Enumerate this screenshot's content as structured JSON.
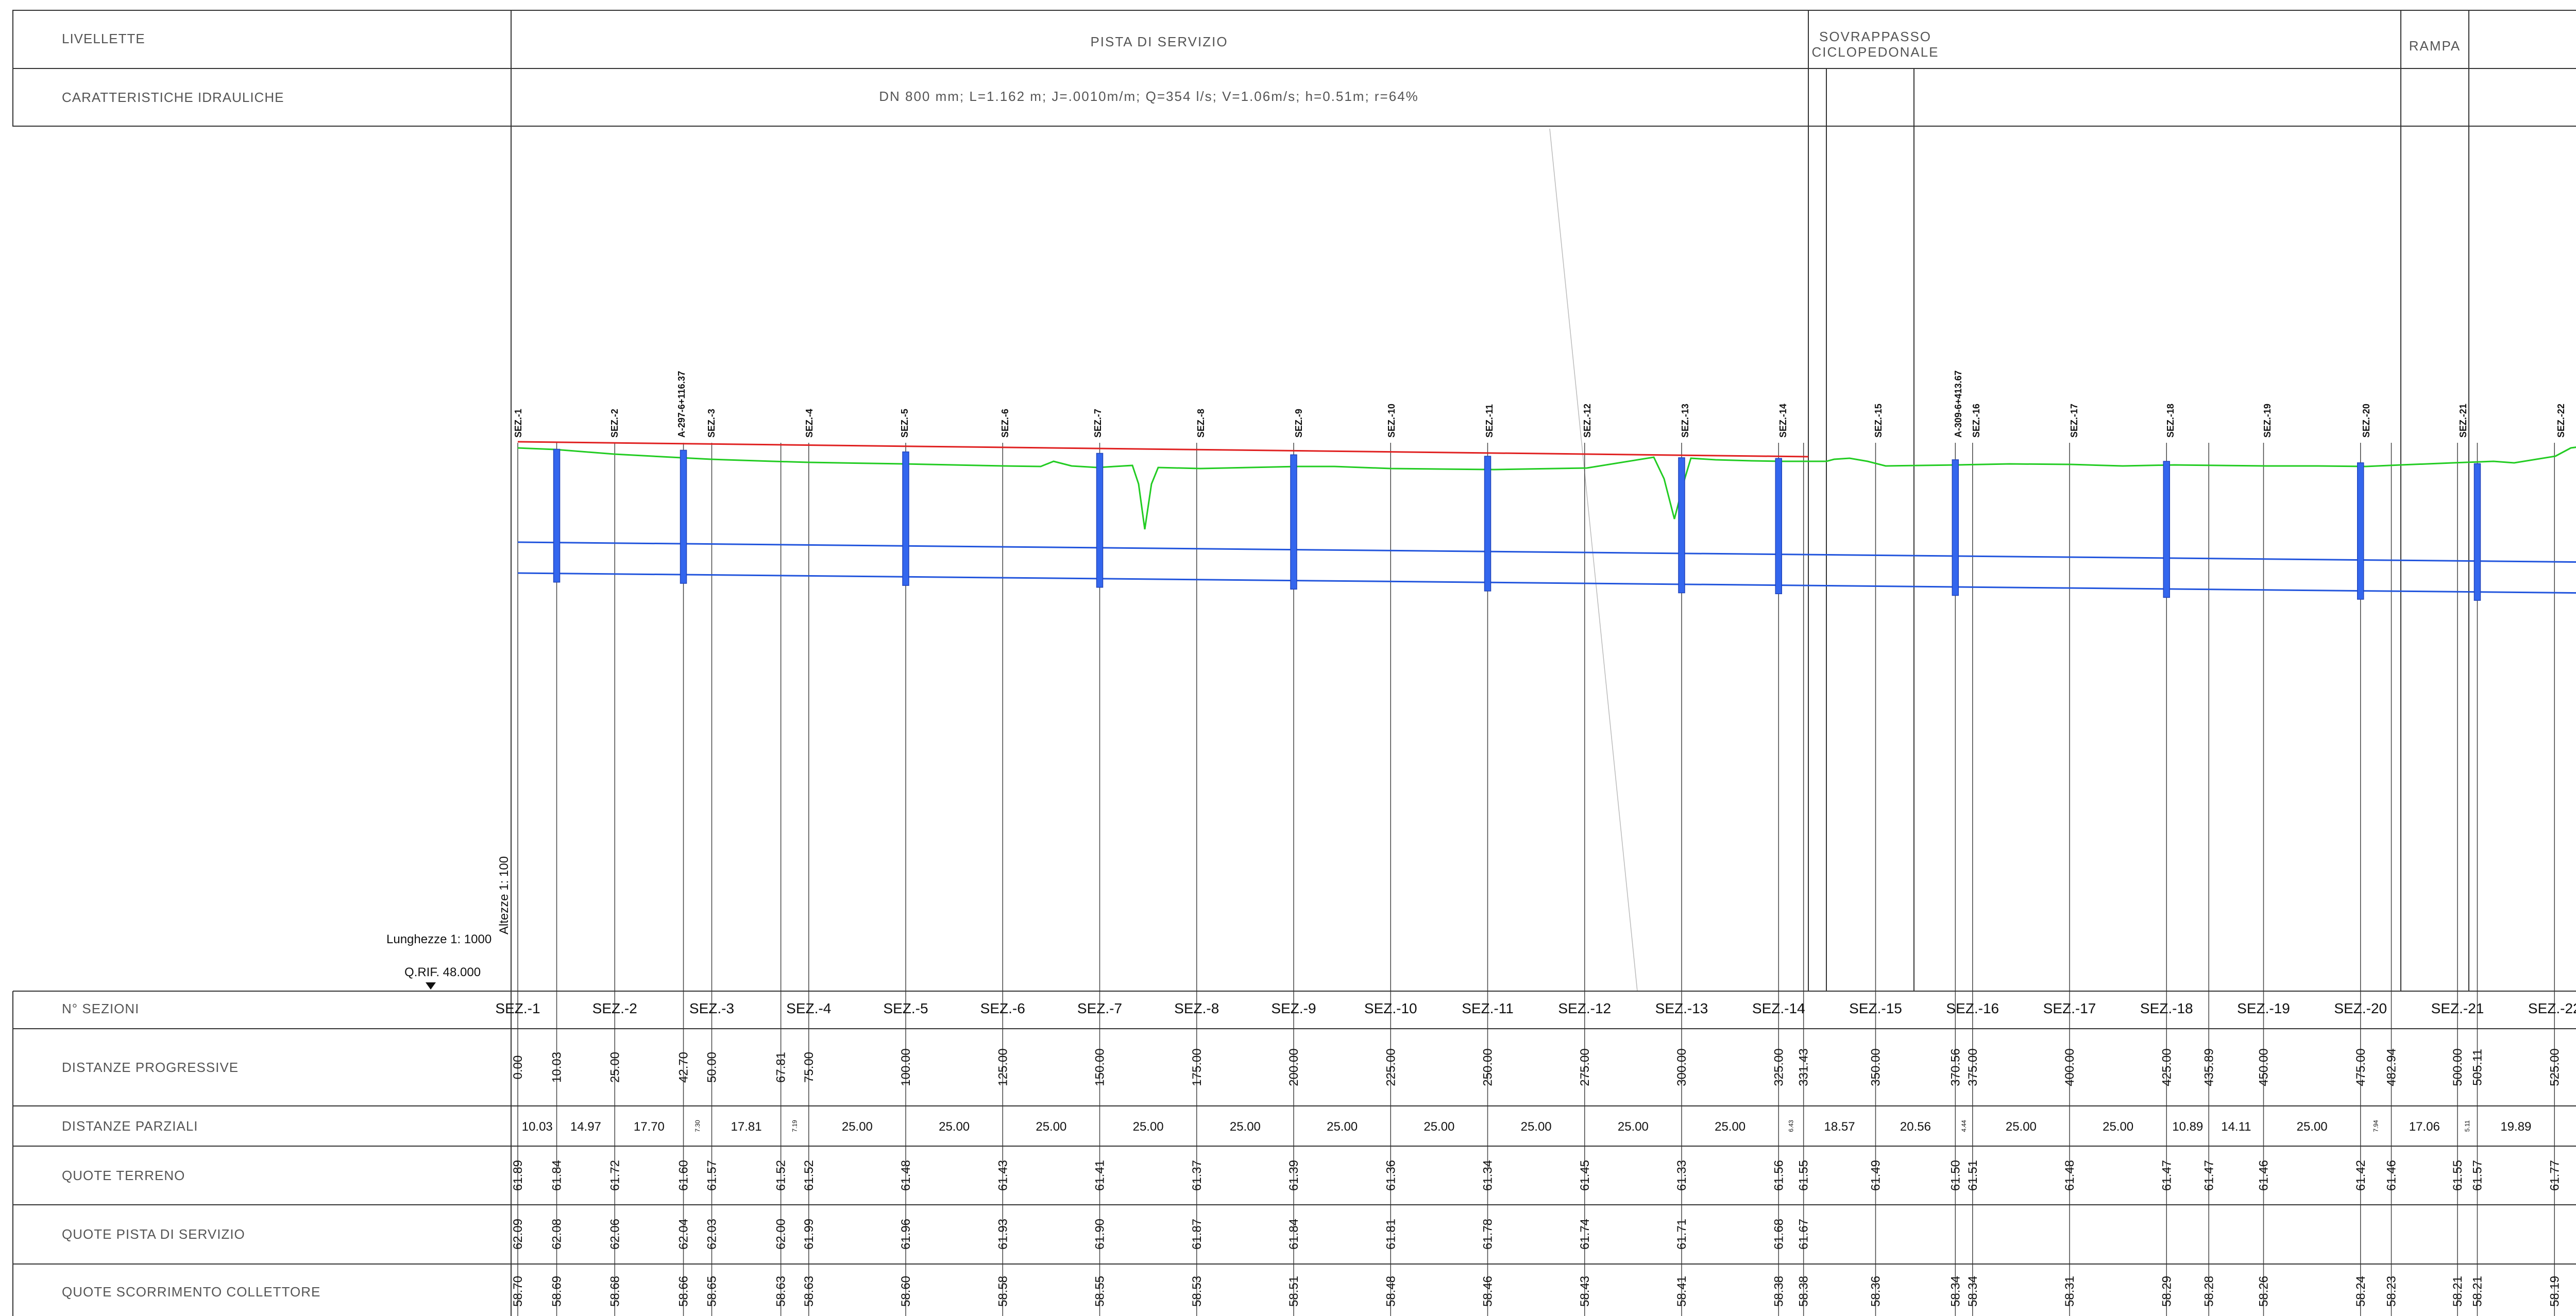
{
  "header": {
    "livellette_label": "LIVELLETTE",
    "caratteristiche_label": "CARATTERISTICHE IDRAULICHE",
    "segments": [
      "PISTA DI SERVIZIO",
      "SOVRAPPASSO",
      "CICLOPEDONALE",
      "RAMPA"
    ],
    "hydraulics": "DN 800  mm;  L=1.162  m;  J=.0010m/m;  Q=354  l/s;  V=1.06m/s;  h=0.51m;  r=64%"
  },
  "scales": {
    "altezze": "Altezze 1: 100",
    "lunghezze": "Lunghezze 1: 1000",
    "qrif": "Q.RIF. 48.000"
  },
  "row_labels": {
    "sezioni": "N° SEZIONI",
    "progressive": "DISTANZE  PROGRESSIVE",
    "parziali": "DISTANZE  PARZIALI",
    "terreno": "QUOTE  TERRENO",
    "pista": "QUOTE  PISTA  DI  SERVIZIO",
    "collettore": "QUOTE  SCORRIMENTO  COLLETTORE"
  },
  "sections": [
    "SEZ.-1",
    "SEZ.-2",
    "SEZ.-3",
    "SEZ.-4",
    "SEZ.-5",
    "SEZ.-6",
    "SEZ.-7",
    "SEZ.-8",
    "SEZ.-9",
    "SEZ.-10",
    "SEZ.-11",
    "SEZ.-12",
    "SEZ.-13",
    "SEZ.-14",
    "SEZ.-15",
    "SEZ.-16",
    "SEZ.-17",
    "SEZ.-18",
    "SEZ.-19",
    "SEZ.-20",
    "SEZ.-21",
    "SEZ.-22"
  ],
  "top_labels": [
    "SEZ.-1",
    "SEZ.-2",
    "A-297-6+116.37",
    "SEZ.-3",
    "SEZ.-4",
    "SEZ.-5",
    "SEZ.-6",
    "SEZ.-7",
    "SEZ.-8",
    "SEZ.-9",
    "SEZ.-10",
    "SEZ.-11",
    "SEZ.-12",
    "SEZ.-13",
    "SEZ.-14",
    "SEZ.-15",
    "A-309-6+413.67",
    "SEZ.-16",
    "SEZ.-17",
    "SEZ.-18",
    "SEZ.-19",
    "SEZ.-20",
    "SEZ.-21",
    "SEZ.-22"
  ],
  "progressive": [
    "0.00",
    "10.03",
    "25.00",
    "42.70",
    "50.00",
    "67.81",
    "75.00",
    "100.00",
    "125.00",
    "150.00",
    "175.00",
    "200.00",
    "225.00",
    "250.00",
    "275.00",
    "300.00",
    "325.00",
    "331.43",
    "350.00",
    "370.56",
    "375.00",
    "400.00",
    "425.00",
    "435.89",
    "450.00",
    "475.00",
    "482.94",
    "500.00",
    "505.11",
    "525.00"
  ],
  "parziali": [
    "10.03",
    "14.97",
    "17.70",
    "7.30",
    "17.81",
    "7.19",
    "25.00",
    "25.00",
    "25.00",
    "25.00",
    "25.00",
    "25.00",
    "25.00",
    "25.00",
    "25.00",
    "25.00",
    "6.43",
    "18.57",
    "20.56",
    "4.44",
    "25.00",
    "25.00",
    "10.89",
    "14.11",
    "25.00",
    "7.94",
    "17.06",
    "5.11",
    "19.89"
  ],
  "terreno": [
    "61.89",
    "61.84",
    "61.72",
    "61.60",
    "61.57",
    "61.52",
    "61.52",
    "61.48",
    "61.43",
    "61.41",
    "61.37",
    "61.39",
    "61.36",
    "61.34",
    "61.45",
    "61.33",
    "61.56",
    "61.55",
    "61.49",
    "61.50",
    "61.51",
    "61.48",
    "61.47",
    "61.47",
    "61.46",
    "61.42",
    "61.46",
    "61.55",
    "61.57",
    "61.77"
  ],
  "pista": [
    "62.09",
    "62.08",
    "62.06",
    "62.04",
    "62.03",
    "62.00",
    "61.99",
    "61.96",
    "61.93",
    "61.90",
    "61.87",
    "61.84",
    "61.81",
    "61.78",
    "61.74",
    "61.71",
    "61.68",
    "61.67"
  ],
  "collettore": [
    "58.70",
    "58.69",
    "58.68",
    "58.66",
    "58.65",
    "58.63",
    "58.63",
    "58.60",
    "58.58",
    "58.55",
    "58.53",
    "58.51",
    "58.48",
    "58.46",
    "58.43",
    "58.41",
    "58.38",
    "58.38",
    "58.36",
    "58.34",
    "58.34",
    "58.31",
    "58.29",
    "58.28",
    "58.26",
    "58.24",
    "58.23",
    "58.21",
    "58.21",
    "58.19"
  ],
  "colors": {
    "grid": "#333333",
    "design_grade": "#e02020",
    "terrain": "#22cc22",
    "pipe": "#2255dd",
    "manhole": "#3366ee"
  }
}
